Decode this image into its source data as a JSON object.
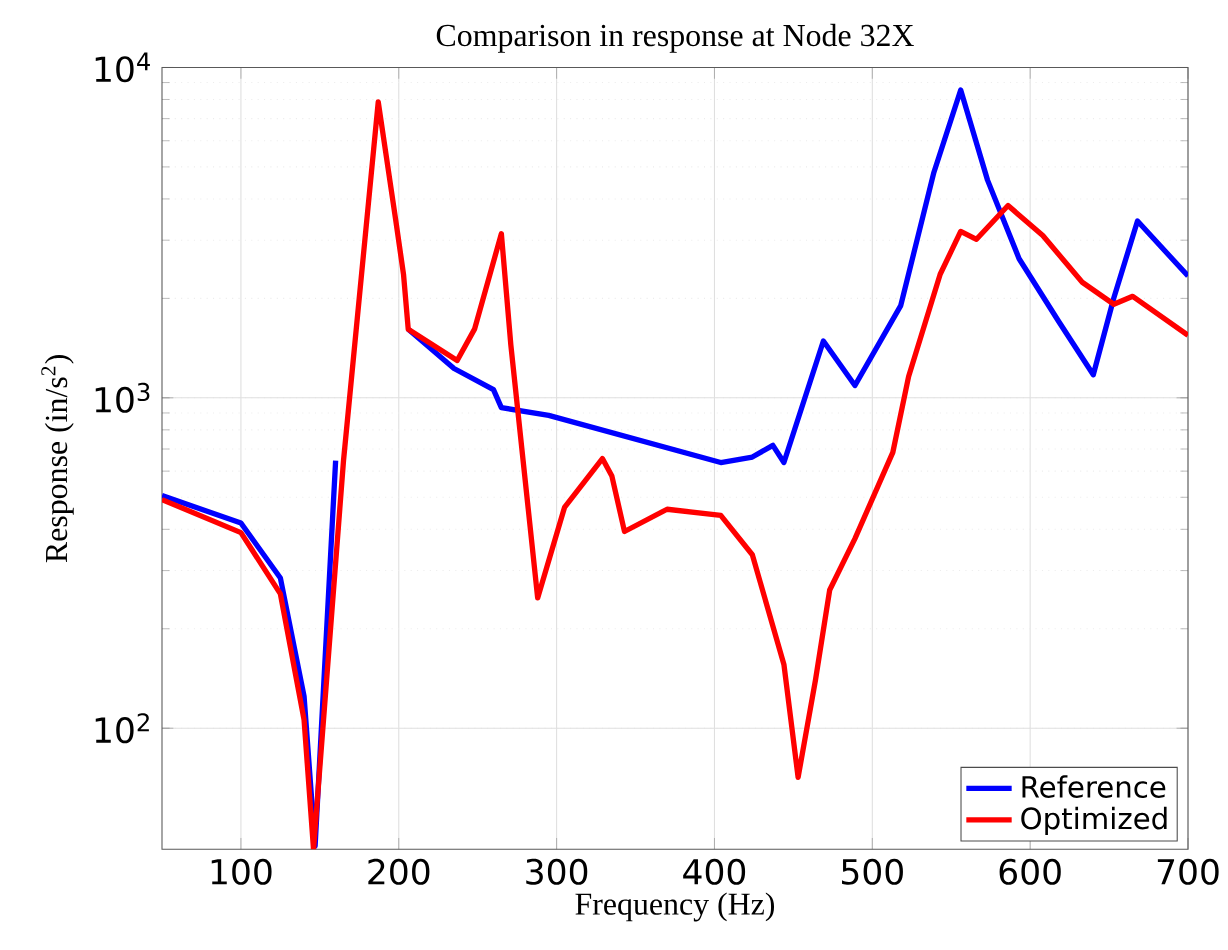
{
  "chart_data": {
    "type": "line",
    "title": "Comparison in response at Node 32X",
    "xlabel": "Frequency (Hz)",
    "ylabel": "Response (in/s$^{2}$)",
    "log": "y",
    "grid": true,
    "legend": "bottom right",
    "marker": "none",
    "line_style": "solid",
    "xlim": [
      50,
      700
    ],
    "xticks": [
      100,
      200,
      300,
      400,
      500,
      600,
      700
    ],
    "ylim": [
      43,
      10000
    ],
    "yticks": [
      {
        "value": 100,
        "label": "10$^{2}$"
      },
      {
        "value": 1000,
        "label": "10$^{3}$"
      },
      {
        "value": 10000,
        "label": "10$^{4}$"
      }
    ],
    "series": [
      {
        "name": "Reference",
        "color": "#0000ff",
        "x": [
          50,
          100,
          125,
          140,
          147,
          160,
          187,
          198,
          203,
          206,
          235,
          260,
          265,
          295,
          404,
          424,
          437,
          444,
          469,
          489,
          518,
          539,
          556,
          573,
          593,
          618,
          640,
          653,
          668,
          700
        ],
        "values": [
          506,
          418,
          285,
          125,
          44,
          646,
          null,
          null,
          null,
          1614,
          1227,
          1059,
          934,
          885,
          637,
          662,
          718,
          637,
          1486,
          1090,
          1901,
          4810,
          8545,
          4560,
          2637,
          1706,
          1175,
          2005,
          3430,
          2337
        ]
      },
      {
        "name": "Optimized",
        "color": "#ff0000",
        "x": [
          50,
          100,
          125,
          140,
          146,
          165,
          187,
          198,
          203,
          206,
          237,
          248,
          265,
          271,
          288,
          305,
          329,
          335,
          343,
          370,
          404,
          424,
          444,
          453,
          464,
          473,
          489,
          513,
          523,
          543,
          556,
          566,
          586,
          608,
          633,
          653,
          665,
          700
        ],
        "values": [
          492,
          391,
          255,
          106,
          43,
          646,
          7870,
          3467,
          2366,
          1614,
          1297,
          1614,
          3138,
          1445,
          248,
          466,
          655,
          580,
          394,
          460,
          441,
          335,
          156,
          71,
          140,
          262,
          375,
          684,
          1161,
          2366,
          3190,
          3020,
          3820,
          3100,
          2238,
          1920,
          2029,
          1546
        ]
      }
    ]
  }
}
